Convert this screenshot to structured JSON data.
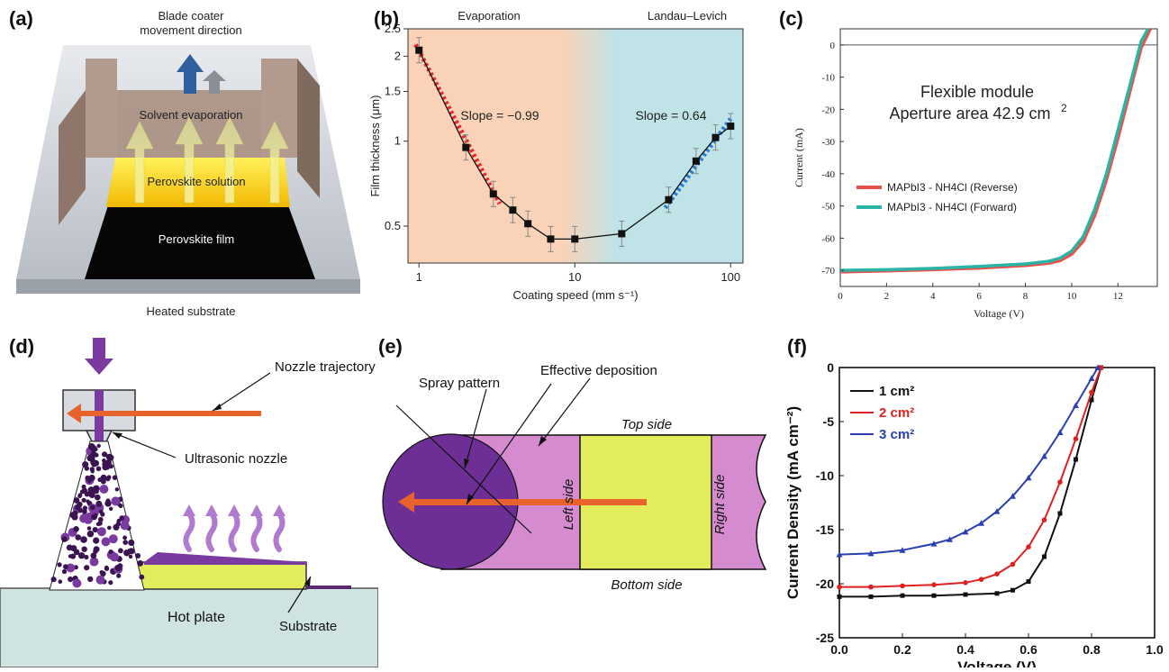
{
  "panels": {
    "a": {
      "label": "(a)",
      "direction_label_line1": "Blade coater",
      "direction_label_line2": "movement direction",
      "solvent_label": "Solvent evaporation",
      "solution_label": "Perovskite solution",
      "film_label": "Perovskite film",
      "substrate_label": "Heated substrate"
    },
    "b": {
      "label": "(b)",
      "region_left": "Evaporation",
      "region_right": "Landau–Levich",
      "slope_left": "Slope = −0.99",
      "slope_right": "Slope = 0.64"
    },
    "c": {
      "label": "(c)",
      "title_line1": "Flexible module",
      "title_line2": "Aperture area 42.9 cm",
      "title_sup": "2"
    },
    "d": {
      "label": "(d)",
      "nozzle_trajectory": "Nozzle trajectory",
      "ultrasonic_nozzle": "Ultrasonic nozzle",
      "hot_plate": "Hot plate",
      "substrate": "Substrate"
    },
    "e": {
      "label": "(e)",
      "effective_deposition": "Effective deposition",
      "spray_pattern": "Spray pattern",
      "top_side": "Top side",
      "bottom_side": "Bottom side",
      "left_side": "Left side",
      "right_side": "Right side"
    },
    "f": {
      "label": "(f)"
    }
  },
  "colors": {
    "evaporation_bg": "#f9d2b8",
    "landau_bg": "#bfe3e6",
    "reverse": "#e8524a",
    "forward": "#2bb3a6",
    "f_black": "#111111",
    "f_red": "#e02020",
    "f_blue": "#2a3fb0",
    "orange_arrow": "#e8622c",
    "purple": "#7a3aa0",
    "pink": "#d58bd0",
    "yellow": "#e3ec5a"
  },
  "chart_data": [
    {
      "type": "scatter",
      "panel": "b",
      "xlabel": "Coating speed (mm s⁻¹)",
      "ylabel": "Film thickness (μm)",
      "xscale": "log",
      "yscale": "log",
      "xlim": [
        0.85,
        120
      ],
      "ylim": [
        0.37,
        2.5
      ],
      "xticks": [
        1,
        10,
        100
      ],
      "xtick_labels": [
        "1",
        "10",
        "100"
      ],
      "yticks": [
        0.5,
        1,
        1.5,
        2,
        2.5
      ],
      "ytick_labels": [
        "0.5",
        "1",
        "1.5",
        "2",
        "2.5"
      ],
      "series": [
        {
          "x": [
            1,
            2,
            3,
            4,
            5,
            7,
            10,
            20,
            40,
            60,
            80,
            100
          ],
          "y": [
            2.1,
            0.95,
            0.65,
            0.57,
            0.51,
            0.45,
            0.45,
            0.47,
            0.62,
            0.85,
            1.03,
            1.13
          ]
        }
      ],
      "fit_left": {
        "x": [
          0.95,
          3.3
        ],
        "y": [
          2.2,
          0.6
        ]
      },
      "fit_right": {
        "x": [
          38,
          100
        ],
        "y": [
          0.58,
          1.2
        ]
      }
    },
    {
      "type": "line",
      "panel": "c",
      "xlabel": "Voltage (V)",
      "ylabel": "Current (mA)",
      "xlim": [
        0,
        13.7
      ],
      "ylim": [
        -75,
        5
      ],
      "xticks": [
        0,
        2,
        4,
        6,
        8,
        10,
        12
      ],
      "yticks": [
        0,
        -10,
        -20,
        -30,
        -40,
        -50,
        -60,
        -70
      ],
      "series": [
        {
          "name": "MAPbI3 - NH4Cl (Reverse)",
          "x": [
            0,
            2,
            4,
            6,
            8,
            9,
            9.5,
            10,
            10.5,
            11,
            11.5,
            12,
            12.5,
            13,
            13.4
          ],
          "y": [
            -70.5,
            -70.2,
            -69.8,
            -69.3,
            -68.5,
            -67.8,
            -67,
            -65,
            -61,
            -53,
            -42,
            -29,
            -15,
            -1,
            5
          ]
        },
        {
          "name": "MAPbI3 - NH4Cl (Forward)",
          "x": [
            0,
            2,
            4,
            6,
            8,
            9,
            9.5,
            10,
            10.5,
            11,
            11.5,
            12,
            12.5,
            13,
            13.3
          ],
          "y": [
            -70,
            -69.8,
            -69.4,
            -68.8,
            -68,
            -67.2,
            -66.2,
            -64,
            -59.5,
            -51,
            -40,
            -26.5,
            -13,
            1,
            5
          ]
        }
      ],
      "legend_subscripts": [
        "3",
        "4"
      ]
    },
    {
      "type": "line",
      "panel": "f",
      "xlabel": "Voltage (V)",
      "ylabel": "Current Density (mA cm⁻²)",
      "xlim": [
        0,
        1.0
      ],
      "ylim": [
        -25,
        0
      ],
      "xticks": [
        0.0,
        0.2,
        0.4,
        0.6,
        0.8,
        1.0
      ],
      "xtick_labels": [
        "0.0",
        "0.2",
        "0.4",
        "0.6",
        "0.8",
        "1.0"
      ],
      "yticks": [
        0,
        -5,
        -10,
        -15,
        -20,
        -25
      ],
      "series": [
        {
          "name": "1 cm²",
          "x": [
            0,
            0.1,
            0.2,
            0.3,
            0.4,
            0.5,
            0.55,
            0.6,
            0.65,
            0.7,
            0.75,
            0.8,
            0.83
          ],
          "y": [
            -21.2,
            -21.2,
            -21.1,
            -21.1,
            -21.0,
            -20.9,
            -20.6,
            -19.8,
            -17.5,
            -13.5,
            -8.5,
            -3.0,
            0
          ]
        },
        {
          "name": "2 cm²",
          "x": [
            0,
            0.1,
            0.2,
            0.3,
            0.4,
            0.45,
            0.5,
            0.55,
            0.6,
            0.65,
            0.7,
            0.75,
            0.8,
            0.83
          ],
          "y": [
            -20.3,
            -20.3,
            -20.2,
            -20.1,
            -19.9,
            -19.6,
            -19.1,
            -18.2,
            -16.6,
            -14.1,
            -10.6,
            -6.6,
            -2.3,
            0
          ]
        },
        {
          "name": "3 cm²",
          "x": [
            0,
            0.1,
            0.2,
            0.3,
            0.35,
            0.4,
            0.45,
            0.5,
            0.55,
            0.6,
            0.65,
            0.7,
            0.75,
            0.8,
            0.82
          ],
          "y": [
            -17.3,
            -17.2,
            -16.9,
            -16.3,
            -15.9,
            -15.2,
            -14.4,
            -13.3,
            -11.9,
            -10.2,
            -8.2,
            -6.0,
            -3.5,
            -1.0,
            0
          ]
        }
      ]
    }
  ]
}
